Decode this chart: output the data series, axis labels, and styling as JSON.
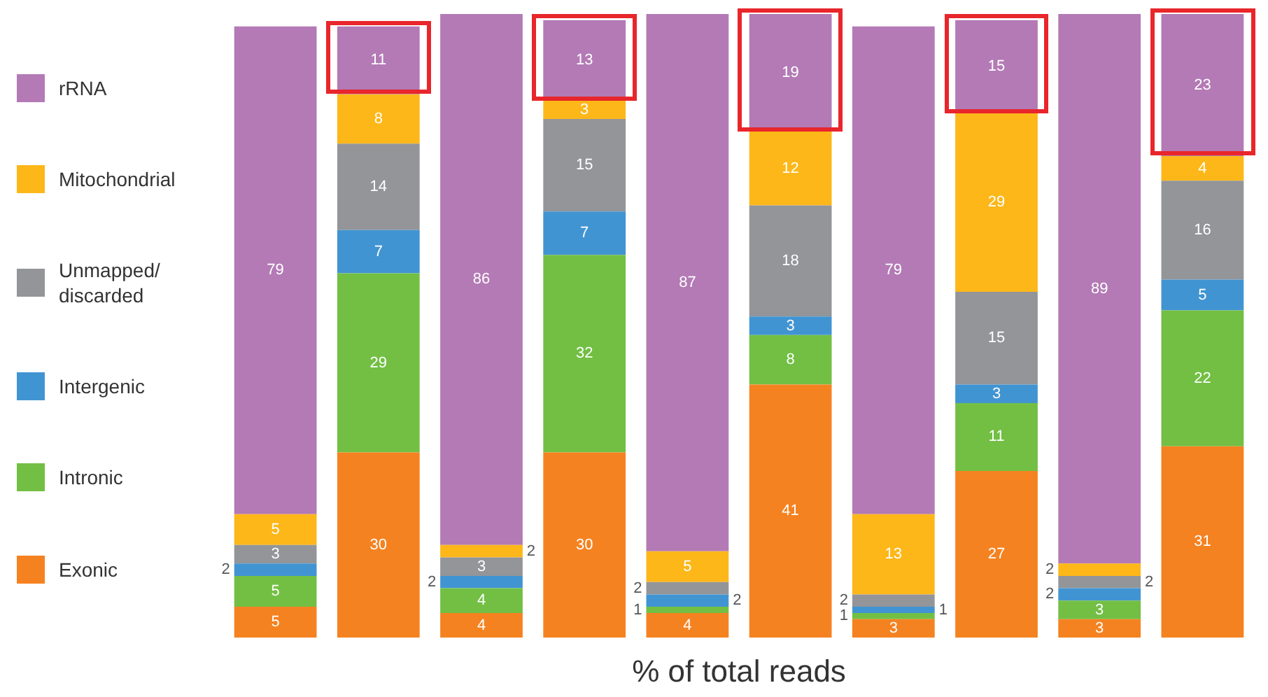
{
  "chart_data": {
    "type": "bar",
    "stacked": true,
    "xlabel": "% of total reads",
    "categories": [
      null,
      null,
      null,
      null,
      null,
      null,
      null,
      null,
      null,
      null
    ],
    "data_labels": true,
    "legend": "left",
    "grid": false,
    "tick_labels": false,
    "series": [
      {
        "name": "Exonic",
        "color": "#f58220",
        "values": [
          5,
          30,
          4,
          30,
          4,
          41,
          3,
          27,
          3,
          31
        ]
      },
      {
        "name": "Intronic",
        "color": "#72bf44",
        "values": [
          5,
          29,
          4,
          32,
          1,
          8,
          1,
          11,
          3,
          22
        ]
      },
      {
        "name": "Intergenic",
        "color": "#4194d2",
        "values": [
          2,
          7,
          2,
          7,
          2,
          3,
          1,
          3,
          2,
          5
        ]
      },
      {
        "name": "Unmapped/\ndiscarded",
        "color": "#939598",
        "values": [
          3,
          14,
          3,
          15,
          2,
          18,
          2,
          15,
          2,
          16
        ]
      },
      {
        "name": "Mitochondrial",
        "color": "#fdb719",
        "values": [
          5,
          8,
          2,
          3,
          5,
          12,
          13,
          29,
          2,
          4
        ]
      },
      {
        "name": "rRNA",
        "color": "#b37ab5",
        "values": [
          79,
          11,
          86,
          13,
          87,
          19,
          79,
          15,
          89,
          23
        ]
      }
    ]
  }
}
